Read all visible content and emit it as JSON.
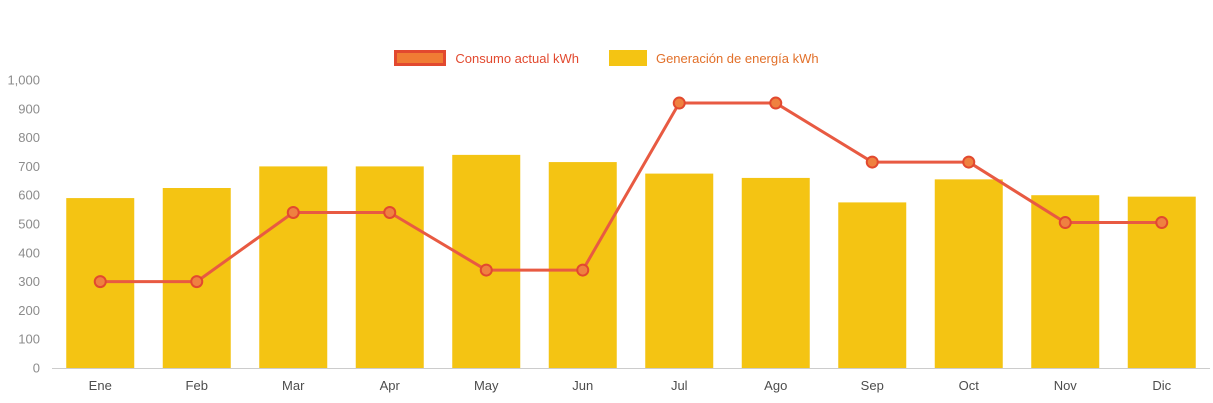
{
  "legend": {
    "items": [
      {
        "label": "Consumo actual kWh",
        "series": "consumo"
      },
      {
        "label": "Generación de energía kWh",
        "series": "generacion"
      }
    ]
  },
  "colors": {
    "bar": "#f4c413",
    "line": "#e85a42",
    "point_fill": "#ef8140",
    "point_stroke": "#e2492f",
    "legend_consumo_fill": "#f07c34",
    "legend_consumo_stroke": "#e2492f",
    "legend_consumo_text": "#e2492f",
    "legend_generacion_fill": "#f4c413",
    "legend_generacion_text": "#e2702a",
    "axis_line": "#cccccc",
    "y_label": "#8c8c8c",
    "x_label": "#4d4d4d"
  },
  "chart_data": {
    "type": "bar+line",
    "title": "",
    "xlabel": "",
    "ylabel": "",
    "categories": [
      "Ene",
      "Feb",
      "Mar",
      "Apr",
      "May",
      "Jun",
      "Jul",
      "Ago",
      "Sep",
      "Oct",
      "Nov",
      "Dic"
    ],
    "series": [
      {
        "name": "Consumo actual kWh",
        "type": "line",
        "values": [
          300,
          300,
          540,
          540,
          340,
          340,
          920,
          920,
          715,
          715,
          505,
          505
        ]
      },
      {
        "name": "Generación de energía kWh",
        "type": "bar",
        "values": [
          590,
          625,
          700,
          700,
          740,
          715,
          675,
          660,
          575,
          655,
          600,
          595
        ]
      }
    ],
    "ylim": [
      0,
      1000
    ],
    "ytick_interval": 100,
    "y_tick_labels": [
      "0",
      "100",
      "200",
      "300",
      "400",
      "500",
      "600",
      "700",
      "800",
      "900",
      "1,000"
    ],
    "legend_position": "top",
    "grid": false
  }
}
